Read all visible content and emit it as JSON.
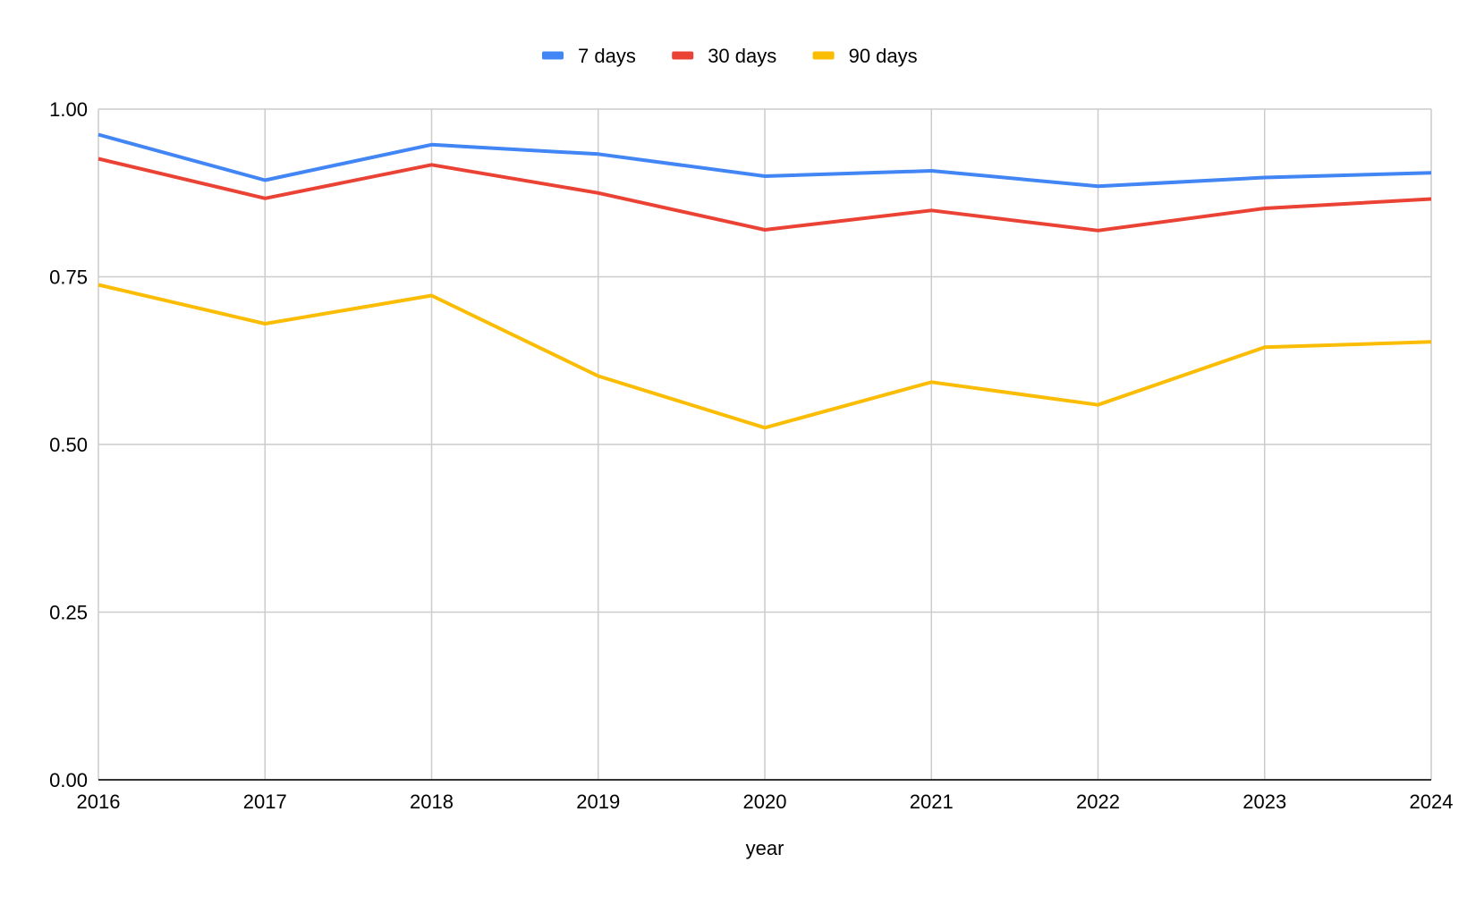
{
  "chart_data": {
    "type": "line",
    "title": "",
    "xlabel": "year",
    "ylabel": "",
    "x": [
      "2016",
      "2017",
      "2018",
      "2019",
      "2020",
      "2021",
      "2022",
      "2023",
      "2024"
    ],
    "ylim": [
      0,
      1
    ],
    "yticks": [
      "0.00",
      "0.25",
      "0.50",
      "0.75",
      "1.00"
    ],
    "ytick_values": [
      0,
      0.25,
      0.5,
      0.75,
      1.0
    ],
    "grid": true,
    "legend_position": "top-center",
    "series": [
      {
        "name": "7 days",
        "color": "#4285F4",
        "values": [
          0.962,
          0.894,
          0.947,
          0.933,
          0.9,
          0.908,
          0.885,
          0.898,
          0.905
        ]
      },
      {
        "name": "30 days",
        "color": "#EA4335",
        "values": [
          0.926,
          0.867,
          0.917,
          0.875,
          0.82,
          0.849,
          0.819,
          0.852,
          0.866
        ]
      },
      {
        "name": "90 days",
        "color": "#FBBC04",
        "values": [
          0.738,
          0.68,
          0.722,
          0.602,
          0.525,
          0.593,
          0.559,
          0.645,
          0.653
        ]
      }
    ]
  }
}
